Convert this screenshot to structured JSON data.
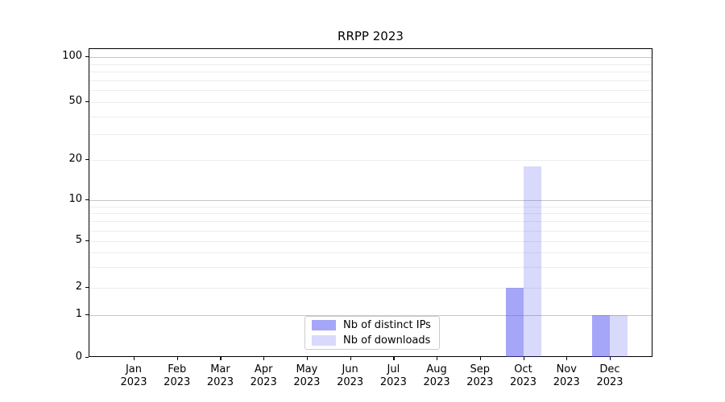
{
  "figure": {
    "title": "RRPP 2023",
    "background": "#ffffff"
  },
  "chart_data": {
    "type": "bar",
    "title": "RRPP 2023",
    "categories": [
      "Jan 2023",
      "Feb 2023",
      "Mar 2023",
      "Apr 2023",
      "May 2023",
      "Jun 2023",
      "Jul 2023",
      "Aug 2023",
      "Sep 2023",
      "Oct 2023",
      "Nov 2023",
      "Dec 2023"
    ],
    "series": [
      {
        "name": "Nb of distinct IPs",
        "color": "#a6a6f8",
        "rgba": "rgba(77,77,241,0.5)",
        "values": [
          0,
          0,
          0,
          0,
          0,
          0,
          0,
          0,
          0,
          2,
          0,
          1
        ]
      },
      {
        "name": "Nb of downloads",
        "color": "#d9d9fb",
        "rgba": "rgba(77,77,241,0.21)",
        "values": [
          0,
          0,
          0,
          0,
          0,
          0,
          0,
          0,
          0,
          18,
          0,
          1
        ]
      }
    ],
    "xlabel": "",
    "ylabel": "",
    "yscale": "symlog",
    "ylim": [
      0,
      100
    ],
    "yticks": [
      0,
      1,
      2,
      5,
      10,
      20,
      50,
      100
    ],
    "major_gridlines": [
      1,
      10,
      100
    ],
    "minor_gridlines": [
      2,
      3,
      4,
      5,
      6,
      7,
      8,
      9,
      20,
      30,
      40,
      50,
      60,
      70,
      80,
      90
    ],
    "grid": "horizontal",
    "legend_position": "lower center",
    "spine_color": "#000000",
    "major_grid_color": "#c6c6c6",
    "minor_grid_color": "#ededed"
  }
}
